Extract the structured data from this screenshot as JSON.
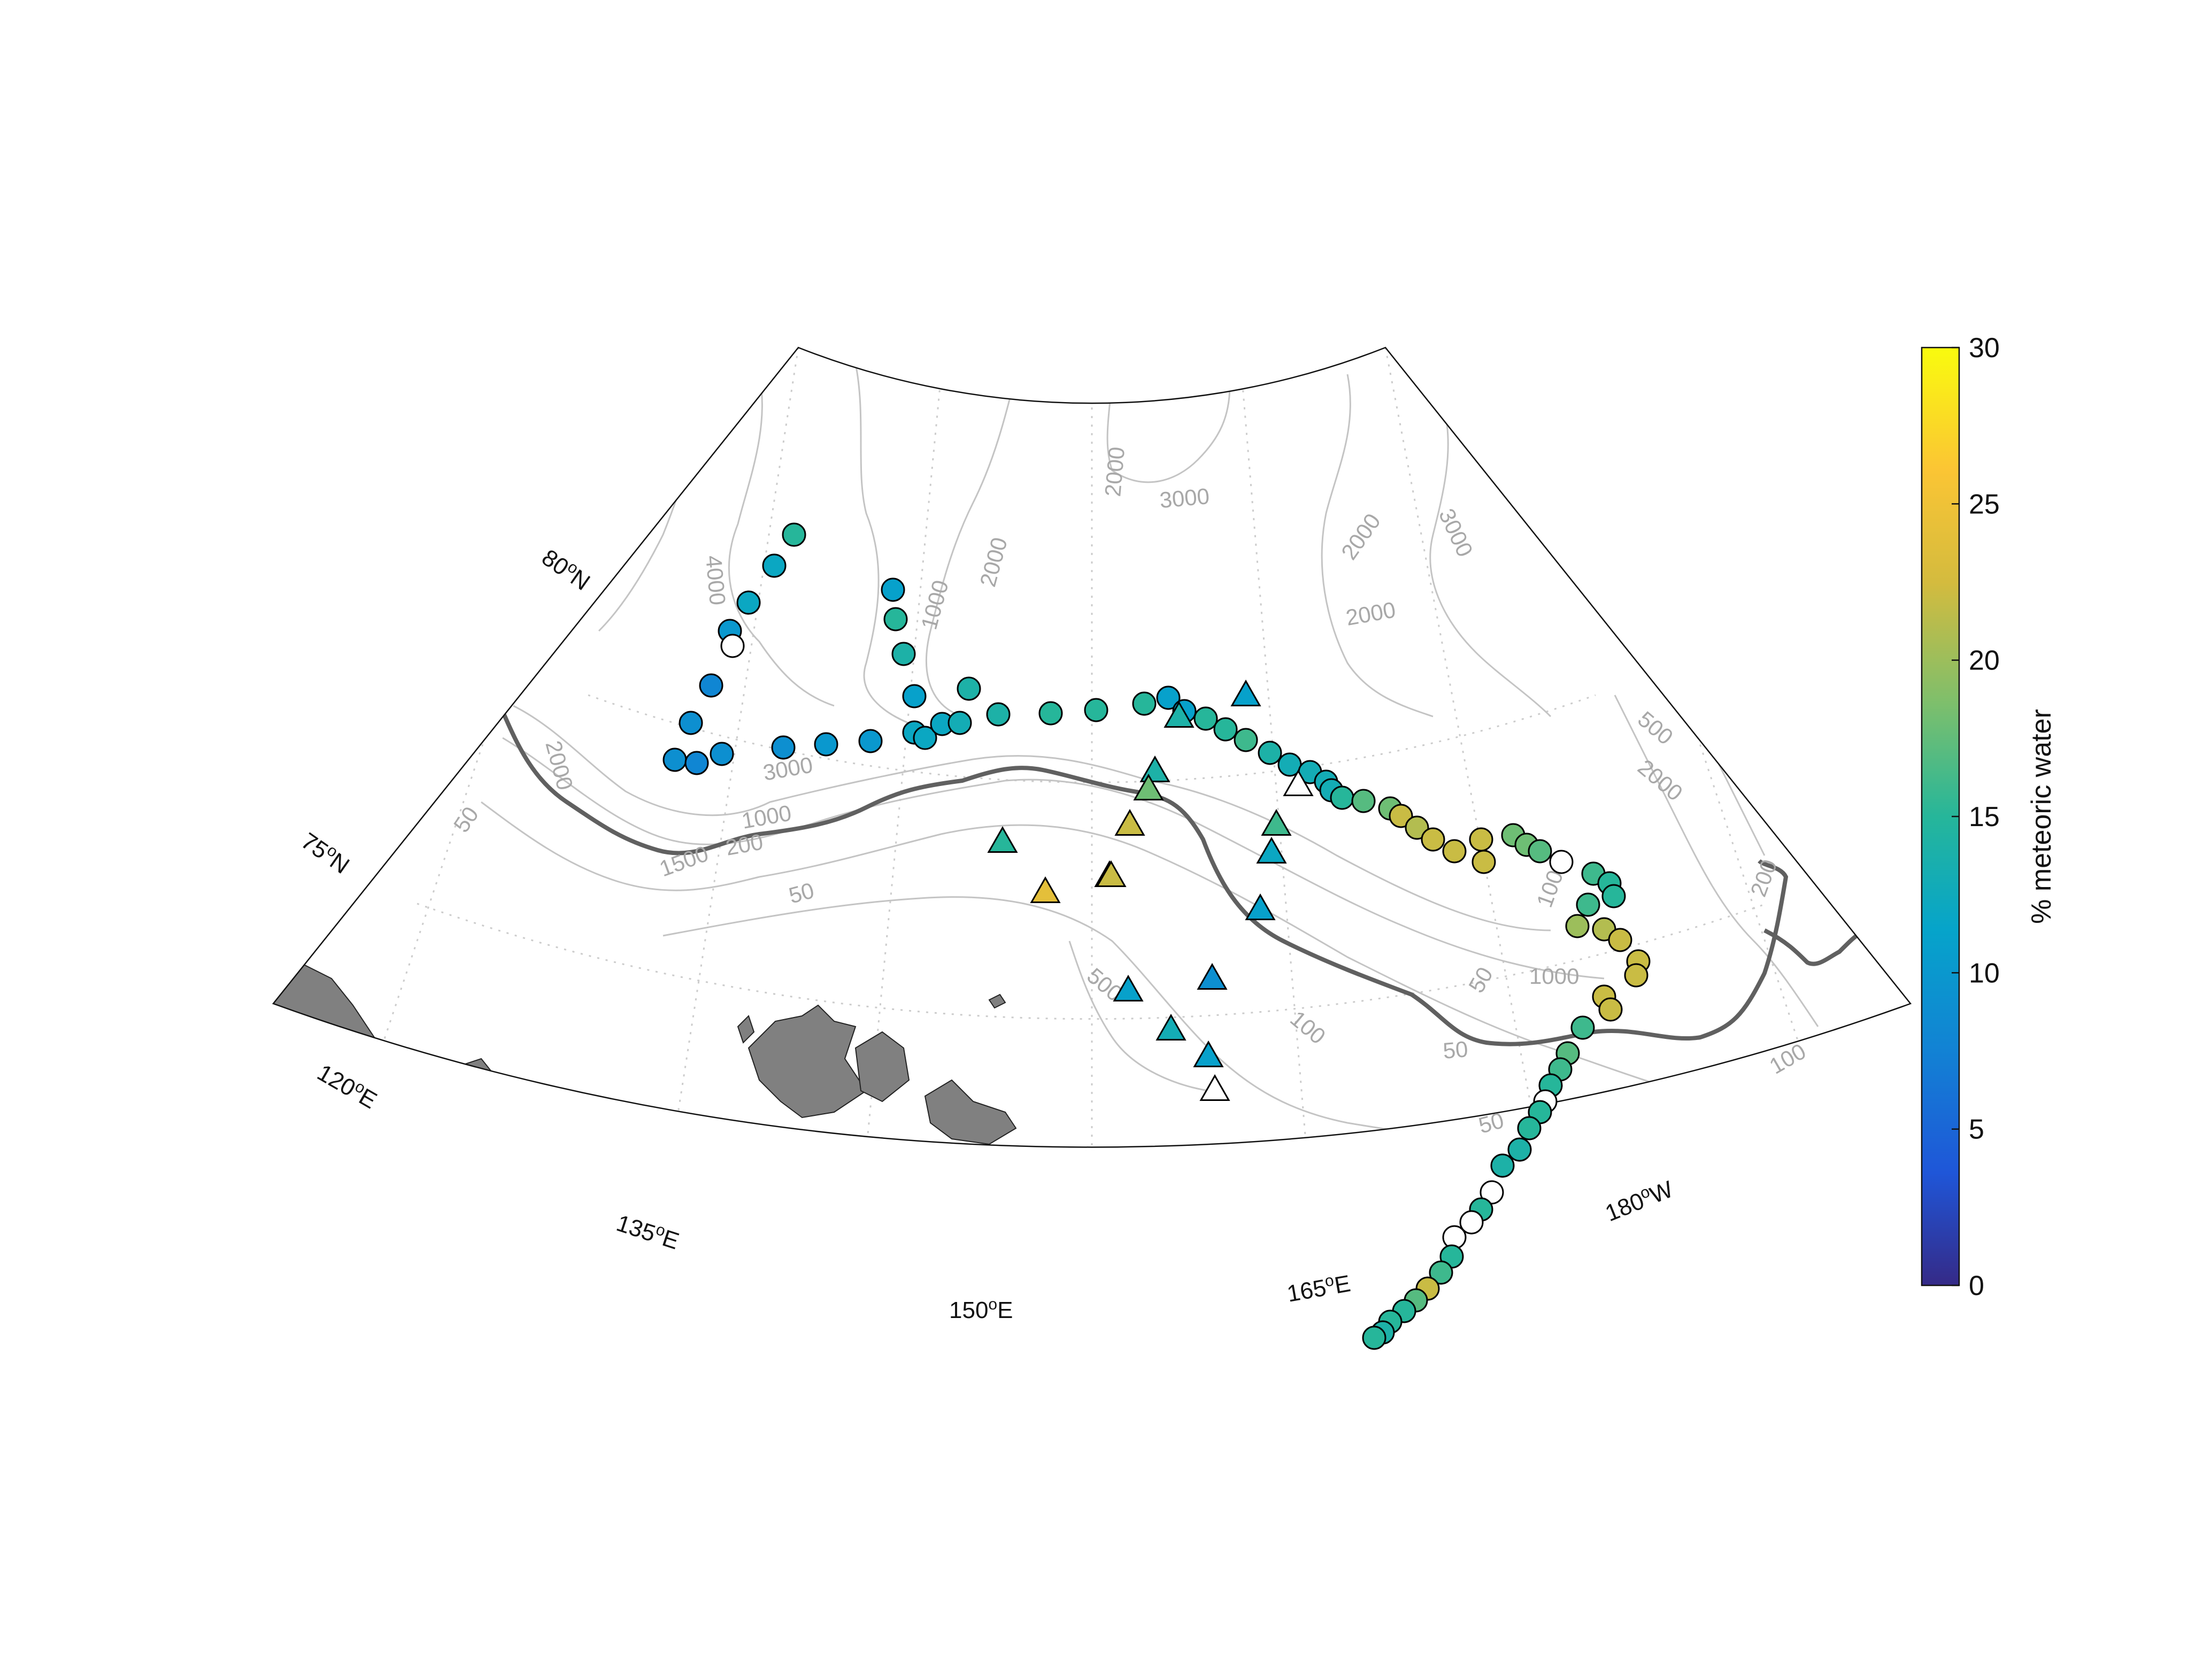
{
  "map": {
    "latitude_labels": [
      "80",
      "75"
    ],
    "lat_suffix": "N",
    "longitude_labels": [
      "120",
      "135",
      "150",
      "165",
      "180"
    ],
    "lon_suffixes": [
      "E",
      "E",
      "E",
      "E",
      "W"
    ],
    "degree_symbol": "o",
    "contour_labels": [
      "4000",
      "2000",
      "1000",
      "2000",
      "3000",
      "2000",
      "2000",
      "3000",
      "2000",
      "500",
      "2000",
      "3000",
      "50",
      "1000",
      "1500",
      "200",
      "50",
      "500",
      "100",
      "50",
      "1000",
      "50",
      "50",
      "200",
      "100",
      "1000"
    ],
    "colors": {
      "land": "#808080",
      "shelf_break_line": "#606060",
      "contour": "#c4c4c4",
      "graticule": "#c8c8c8",
      "no_data_marker": "#ffffff"
    }
  },
  "colorbar": {
    "label": "% meteoric water",
    "ticks": [
      "0",
      "5",
      "10",
      "15",
      "20",
      "25",
      "30"
    ],
    "range": [
      0,
      30
    ],
    "colormap": "parula"
  },
  "stations": {
    "circles": [
      15,
      12,
      12,
      10,
      null,
      8,
      9,
      9,
      8,
      9,
      9,
      10,
      10,
      11,
      15,
      14,
      11,
      12,
      12,
      12,
      13,
      14,
      14,
      15,
      15,
      15,
      11,
      11,
      15,
      15,
      16,
      14,
      13,
      13,
      13,
      13,
      15,
      17,
      18,
      22,
      21,
      22,
      22,
      22,
      22,
      18,
      18,
      17,
      null,
      16,
      15,
      15,
      16,
      20,
      21,
      22,
      22,
      22,
      22,
      22,
      16,
      17,
      16,
      15,
      null,
      15,
      15,
      14,
      14,
      null,
      15,
      null,
      null,
      15,
      16,
      22,
      17,
      15,
      15,
      14,
      15
    ],
    "triangles": [
      11,
      14,
      14,
      18,
      22,
      22,
      15,
      24,
      22,
      16,
      12,
      11,
      null,
      9,
      11,
      13,
      11,
      null
    ]
  }
}
